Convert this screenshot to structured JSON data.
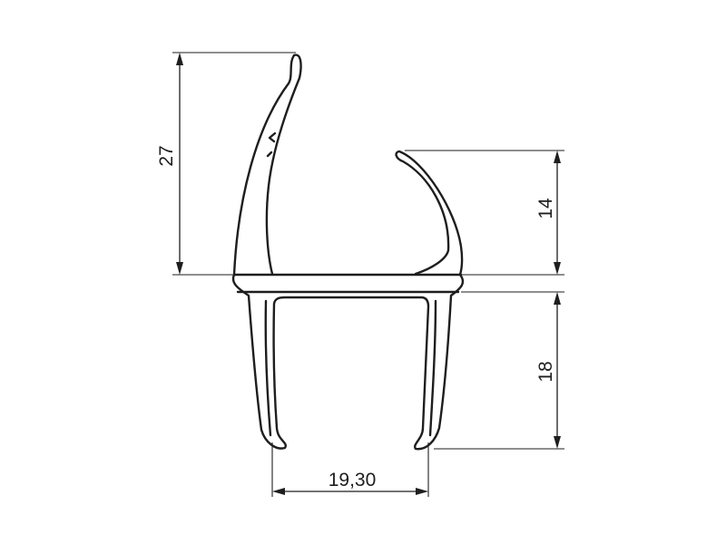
{
  "drawing": {
    "line_color": "#1e1e1e",
    "background": "#ffffff",
    "dimensions": {
      "total_height": "27",
      "upper_lip_height": "14",
      "lower_leg_height": "18",
      "channel_width": "19,30"
    }
  }
}
